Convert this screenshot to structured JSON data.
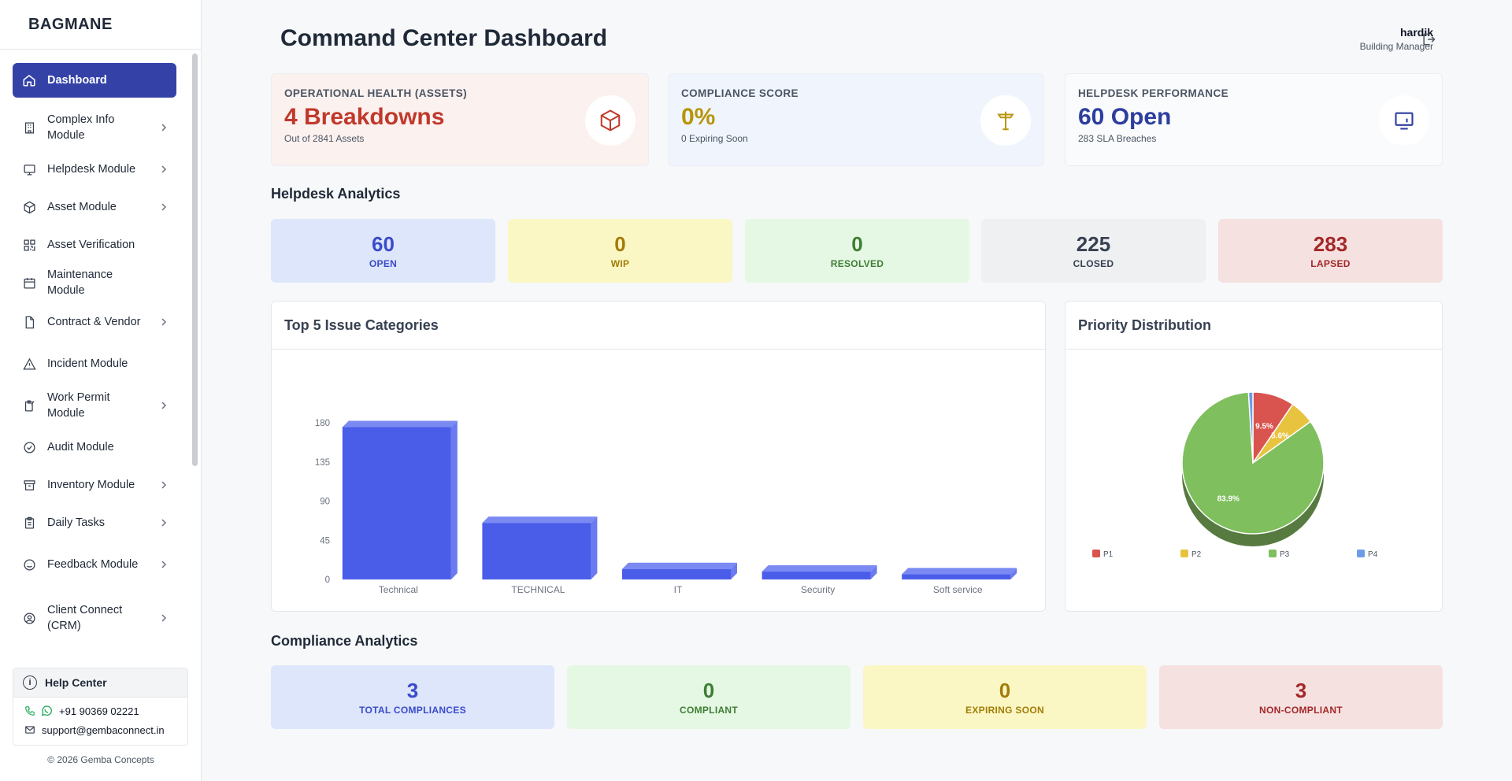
{
  "brand": "BAGMANE",
  "sidebar": {
    "items": [
      {
        "label": "Dashboard",
        "icon": "home-icon"
      },
      {
        "label": "Complex Info Module",
        "icon": "building-icon"
      },
      {
        "label": "Helpdesk Module",
        "icon": "monitor-icon"
      },
      {
        "label": "Asset Module",
        "icon": "cube-icon"
      },
      {
        "label": "Asset Verification",
        "icon": "qr-icon"
      },
      {
        "label": "Maintenance Module",
        "icon": "calendar-icon"
      },
      {
        "label": "Contract & Vendor",
        "icon": "file-icon"
      },
      {
        "label": "Incident Module",
        "icon": "alert-triangle-icon"
      },
      {
        "label": "Work Permit Module",
        "icon": "clipboard-icon"
      },
      {
        "label": "Audit Module",
        "icon": "check-circle-icon"
      },
      {
        "label": "Inventory Module",
        "icon": "archive-icon"
      },
      {
        "label": "Daily Tasks",
        "icon": "clipboard-list-icon"
      },
      {
        "label": "Feedback Module",
        "icon": "smile-icon"
      },
      {
        "label": "Client Connect (CRM)",
        "icon": "user-circle-icon"
      }
    ]
  },
  "help": {
    "title": "Help Center",
    "phone": "+91 90369 02221",
    "email": "support@gembaconnect.in"
  },
  "copyright": "© 2026 Gemba Concepts",
  "header": {
    "title": "Command Center Dashboard",
    "user_name": "hardik",
    "user_role": "Building Manager"
  },
  "kpis": [
    {
      "title": "OPERATIONAL HEALTH (ASSETS)",
      "value": "4 Breakdowns",
      "sub": "Out of 2841 Assets",
      "color": "#c0392b",
      "bg": "#fbf1ef",
      "icon": "cube-icon"
    },
    {
      "title": "COMPLIANCE SCORE",
      "value": "0%",
      "sub": "0 Expiring Soon",
      "color": "#b7950b",
      "bg": "#f0f5fd",
      "icon": "signpost-icon"
    },
    {
      "title": "HELPDESK PERFORMANCE",
      "value": "60 Open",
      "sub": "283 SLA Breaches",
      "color": "#2c3e9e",
      "bg": "#fafbfc",
      "icon": "monitor-icon"
    }
  ],
  "helpdesk_title": "Helpdesk Analytics",
  "helpdesk_stats": [
    {
      "value": "60",
      "label": "OPEN",
      "bg": "#dde6fb",
      "color": "#3a4bc9"
    },
    {
      "value": "0",
      "label": "WIP",
      "bg": "#fbf7c4",
      "color": "#a27c0a"
    },
    {
      "value": "0",
      "label": "RESOLVED",
      "bg": "#e5f8e3",
      "color": "#3f7d35"
    },
    {
      "value": "225",
      "label": "CLOSED",
      "bg": "#eff0f2",
      "color": "#374151"
    },
    {
      "value": "283",
      "label": "LAPSED",
      "bg": "#f6e1e1",
      "color": "#a32828"
    }
  ],
  "bar_panel_title": "Top 5 Issue Categories",
  "pie_panel_title": "Priority Distribution",
  "compliance_title": "Compliance Analytics",
  "compliance_stats": [
    {
      "value": "3",
      "label": "TOTAL COMPLIANCES",
      "bg": "#dde6fb",
      "color": "#3a4bc9"
    },
    {
      "value": "0",
      "label": "COMPLIANT",
      "bg": "#e5f8e3",
      "color": "#3f7d35"
    },
    {
      "value": "0",
      "label": "EXPIRING SOON",
      "bg": "#fbf7c4",
      "color": "#a27c0a"
    },
    {
      "value": "3",
      "label": "NON-COMPLIANT",
      "bg": "#f6e1e1",
      "color": "#a32828"
    }
  ],
  "chart_data": [
    {
      "type": "bar",
      "title": "Top 5 Issue Categories",
      "categories": [
        "Technical",
        "TECHNICAL",
        "IT",
        "Security",
        "Soft service"
      ],
      "values": [
        175,
        65,
        12,
        9,
        6
      ],
      "ylim": [
        0,
        180
      ],
      "yticks": [
        "0",
        "45",
        "90",
        "135",
        "180"
      ],
      "color": "#4a5de8"
    },
    {
      "type": "pie",
      "title": "Priority Distribution",
      "categories": [
        "P1",
        "P2",
        "P3",
        "P4"
      ],
      "values": [
        9.5,
        5.6,
        83.9,
        1.0
      ],
      "labels": [
        "9.5%",
        "5.6%",
        "83.9%",
        ""
      ],
      "colors": [
        "#d9534f",
        "#e8c340",
        "#7fbf5e",
        "#6b9ce8"
      ],
      "legend": "bottom"
    }
  ]
}
